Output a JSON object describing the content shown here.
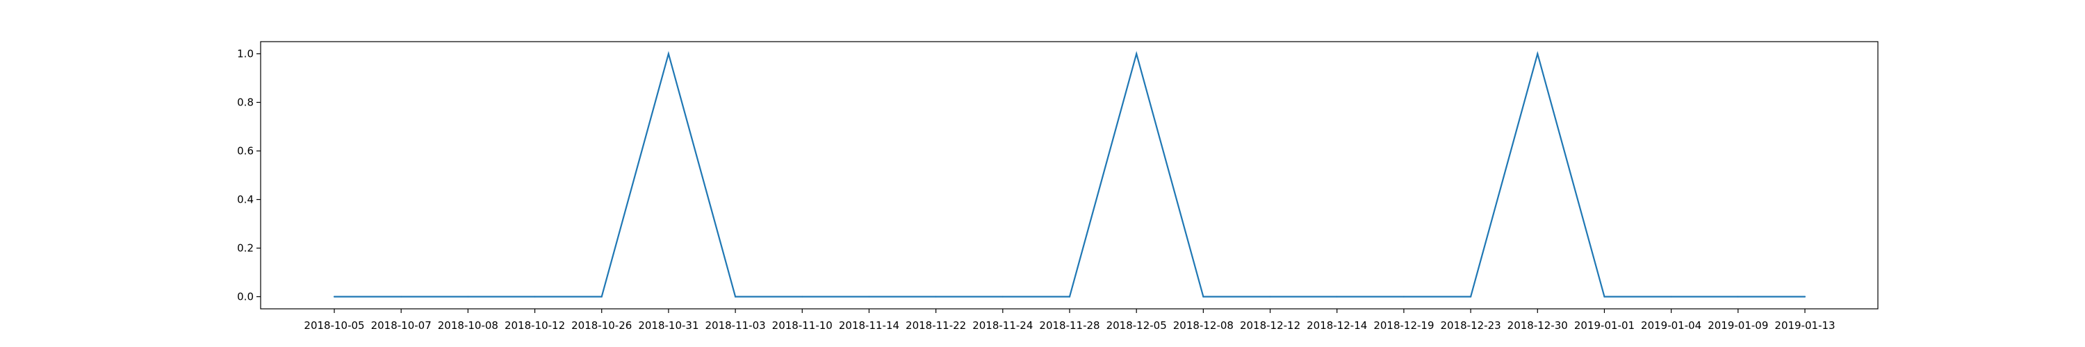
{
  "chart_data": {
    "type": "line",
    "title": "",
    "xlabel": "",
    "ylabel": "",
    "categories": [
      "2018-10-05",
      "2018-10-07",
      "2018-10-08",
      "2018-10-12",
      "2018-10-26",
      "2018-10-31",
      "2018-11-03",
      "2018-11-10",
      "2018-11-14",
      "2018-11-22",
      "2018-11-24",
      "2018-11-28",
      "2018-12-05",
      "2018-12-08",
      "2018-12-12",
      "2018-12-14",
      "2018-12-19",
      "2018-12-23",
      "2018-12-30",
      "2019-01-01",
      "2019-01-04",
      "2019-01-09",
      "2019-01-13"
    ],
    "series": [
      {
        "values": [
          0,
          0,
          0,
          0,
          0,
          1,
          0,
          0,
          0,
          0,
          0,
          0,
          1,
          0,
          0,
          0,
          0,
          0,
          1,
          0,
          0,
          0,
          0
        ],
        "color": "#1f77b4"
      }
    ],
    "ylim": [
      -0.05,
      1.05
    ],
    "yticks": [
      0.0,
      0.2,
      0.4,
      0.6,
      0.8,
      1.0
    ],
    "ytick_labels": [
      "0.0",
      "0.2",
      "0.4",
      "0.6",
      "0.8",
      "1.0"
    ],
    "grid": false,
    "legend": "none"
  }
}
